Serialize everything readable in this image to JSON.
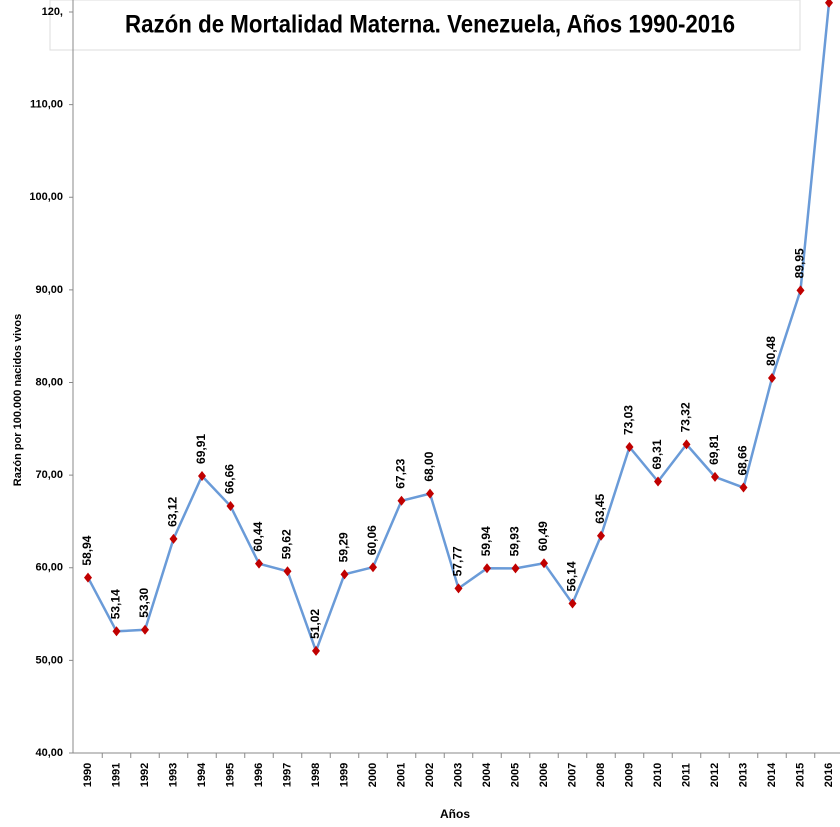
{
  "chart_data": {
    "type": "line",
    "title": "Razón de Mortalidad  Materna. Venezuela, Años 1990-2016",
    "y_label": "Razón por 100.000 nacidos vivos",
    "x_label": "Años",
    "categories": [
      "1990",
      "1991",
      "1992",
      "1993",
      "1994",
      "1995",
      "1996",
      "1997",
      "1998",
      "1999",
      "2000",
      "2001",
      "2002",
      "2003",
      "2004",
      "2005",
      "2006",
      "2007",
      "2008",
      "2009",
      "2010",
      "2011",
      "2012",
      "2013",
      "2014",
      "2015",
      "2016"
    ],
    "series": [
      {
        "name": "Razón de Mortalidad Materna",
        "color": "#6a9bd8",
        "marker_color": "#c00000",
        "values": [
          58.94,
          53.14,
          53.3,
          63.12,
          69.91,
          66.66,
          60.44,
          59.62,
          51.02,
          59.29,
          60.06,
          67.23,
          68.0,
          57.77,
          59.94,
          59.93,
          60.49,
          56.14,
          63.45,
          73.03,
          69.31,
          73.32,
          69.81,
          68.66,
          80.48,
          89.95,
          121
        ],
        "value_labels": [
          "58,94",
          "53,14",
          "53,30",
          "63,12",
          "69,91",
          "66,66",
          "60,44",
          "59,62",
          "51,02",
          "59,29",
          "60,06",
          "67,23",
          "68,00",
          "57,77",
          "59,94",
          "59,93",
          "60,49",
          "56,14",
          "63,45",
          "73,03",
          "69,31",
          "73,32",
          "69,81",
          "68,66",
          "80,48",
          "89,95",
          null
        ]
      }
    ],
    "ylim": [
      40,
      120
    ],
    "yticks": [
      {
        "value": 40,
        "label": "40,00"
      },
      {
        "value": 50,
        "label": "50,00"
      },
      {
        "value": 60,
        "label": "60,00"
      },
      {
        "value": 70,
        "label": "70,00"
      },
      {
        "value": 80,
        "label": "80,00"
      },
      {
        "value": 90,
        "label": "90,00"
      },
      {
        "value": 100,
        "label": "100,00"
      },
      {
        "value": 110,
        "label": "110,00"
      },
      {
        "value": 120,
        "label": "120,"
      }
    ]
  }
}
